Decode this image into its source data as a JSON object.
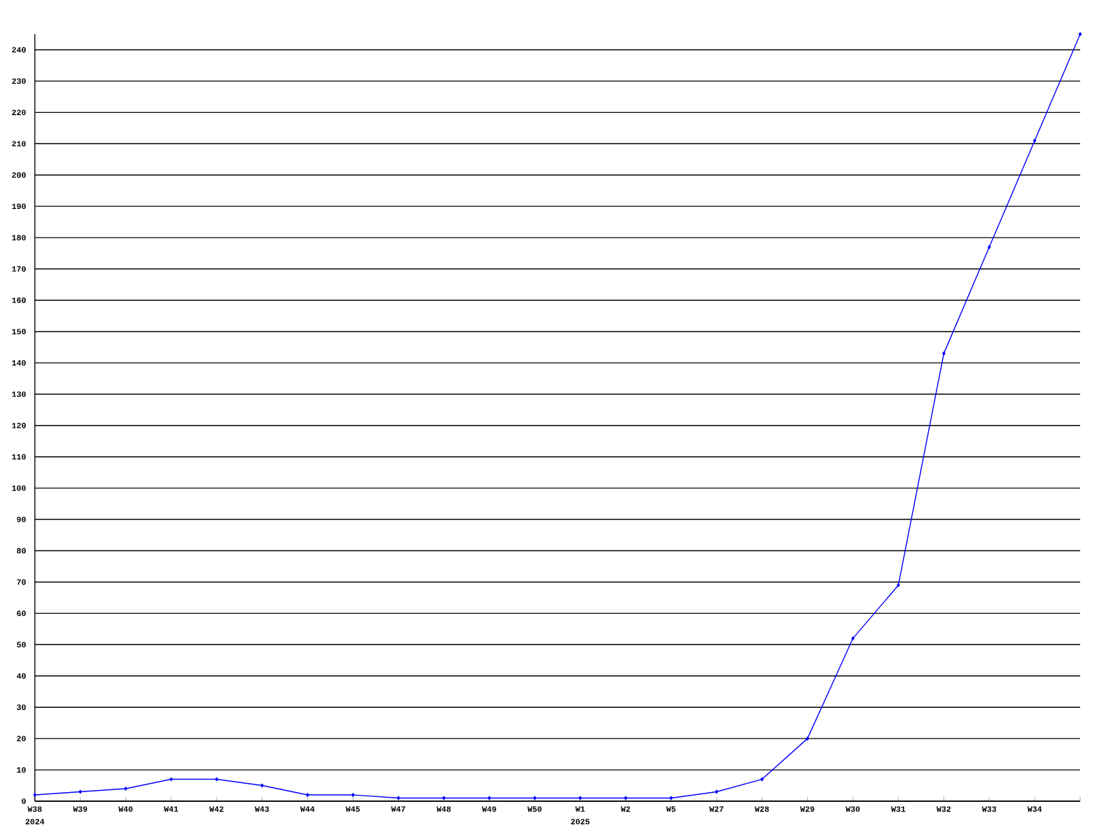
{
  "chart_data": {
    "type": "line",
    "categories": [
      "W38",
      "W39",
      "W40",
      "W41",
      "W42",
      "W43",
      "W44",
      "W45",
      "W47",
      "W48",
      "W49",
      "W50",
      "W1",
      "W2",
      "W5",
      "W27",
      "W28",
      "W29",
      "W30",
      "W31",
      "W32",
      "W33",
      "W34",
      null
    ],
    "series": [
      {
        "color": "#0000ff",
        "values": [
          2,
          3,
          4,
          7,
          7,
          5,
          2,
          2,
          1,
          1,
          1,
          1,
          1,
          1,
          1,
          3,
          7,
          20,
          52,
          69,
          143,
          177,
          211,
          245
        ]
      }
    ],
    "ylim": [
      0,
      245
    ],
    "yticks": [
      0,
      10,
      20,
      30,
      40,
      50,
      60,
      70,
      80,
      90,
      100,
      110,
      120,
      130,
      140,
      150,
      160,
      170,
      180,
      190,
      200,
      210,
      220,
      230,
      240
    ],
    "grid": "y",
    "marker": "diamond",
    "line_style": "solid",
    "annotations": [
      "2024",
      "2025"
    ]
  }
}
